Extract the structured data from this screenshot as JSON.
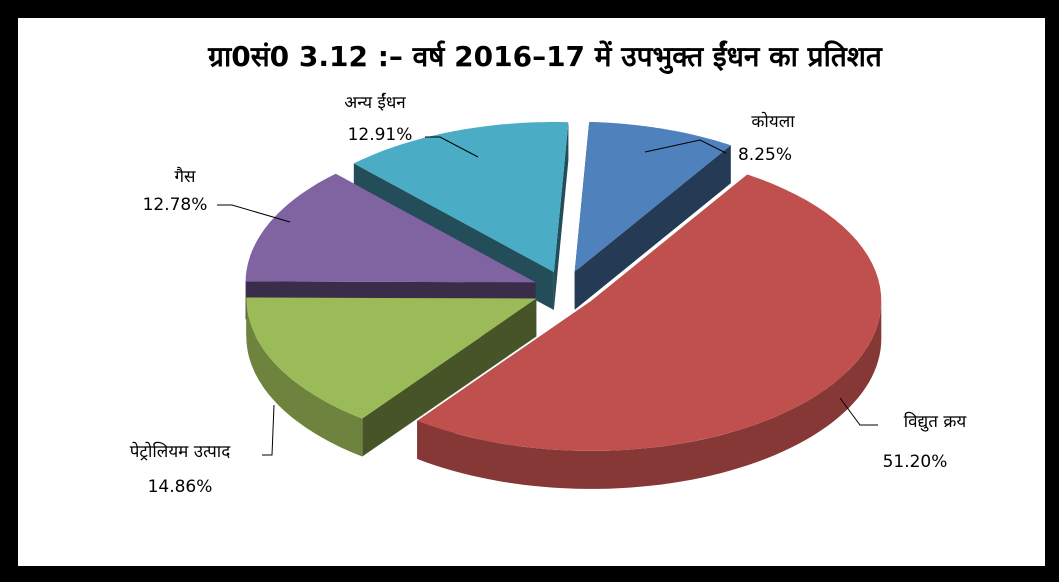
{
  "chart_data": {
    "type": "pie",
    "title": "ग्रा0सं0 3.12 :– वर्ष 2016–17 में उपभुक्त ईंधन का प्रतिशत",
    "categories": [
      "कोयला",
      "विद्युत क्रय",
      "पेट्रोलियम उत्पाद",
      "गैस",
      "अन्य ईंधन"
    ],
    "values": [
      8.25,
      51.2,
      14.86,
      12.78,
      12.91
    ],
    "value_labels": [
      "8.25%",
      "51.20%",
      "14.86%",
      "12.78%",
      "12.91%"
    ],
    "colors": [
      "#4f81bd",
      "#c0504d",
      "#9bbb59",
      "#8064a2",
      "#4bacc6"
    ]
  }
}
